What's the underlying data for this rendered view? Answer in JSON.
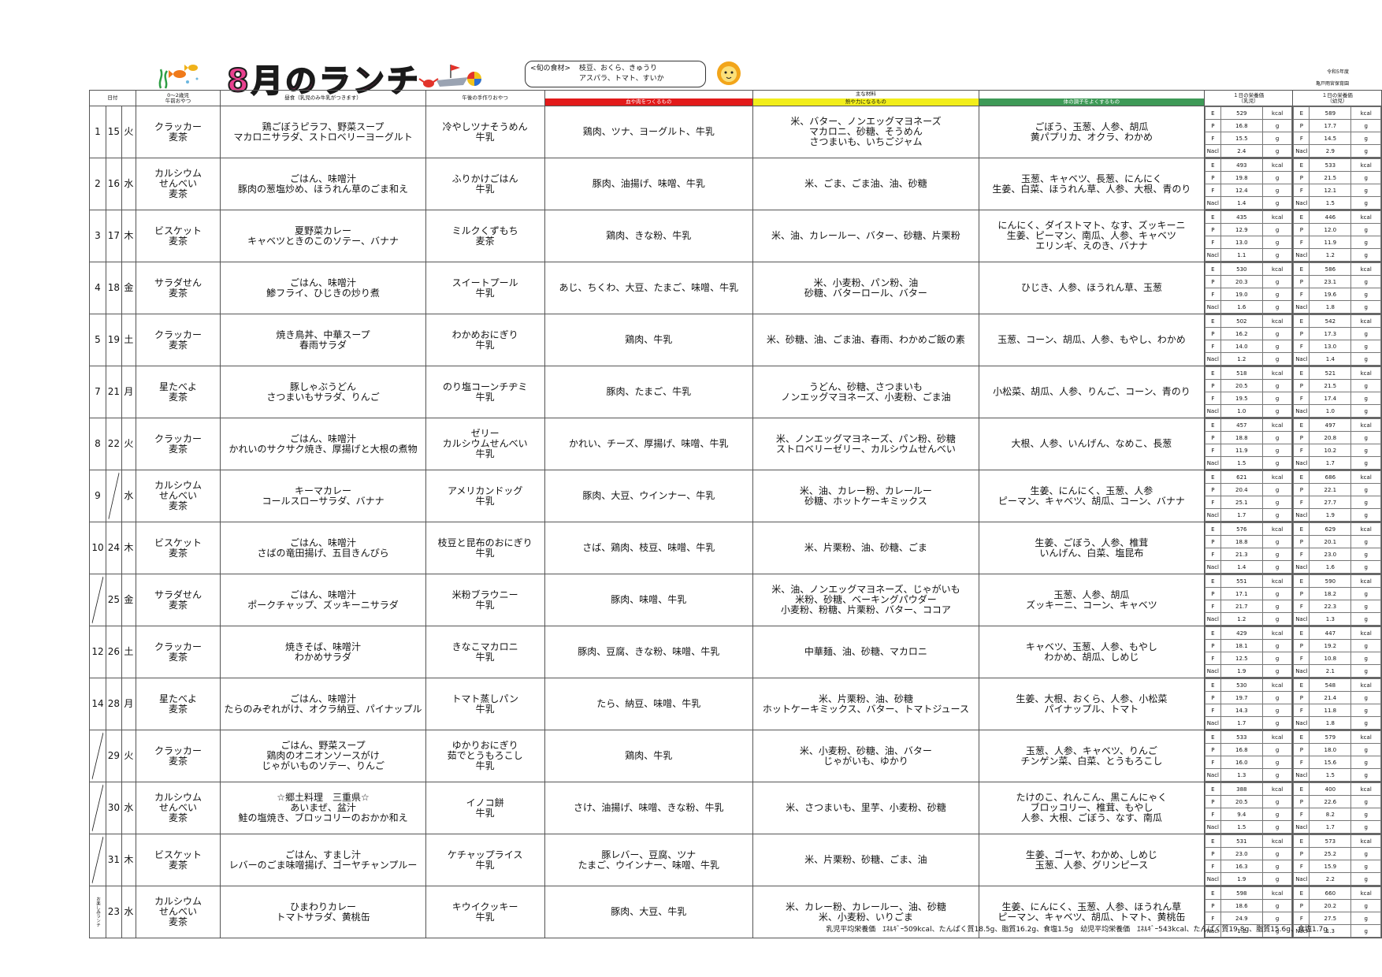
{
  "header": {
    "title": "8月のランチ",
    "shun": {
      "label": "<旬の食材>",
      "line1": "枝豆、おくら、きゅうり",
      "line2": "アスパラ、トマト、すいか"
    },
    "year_note": "令和5年度",
    "org_note": "亀戸雨宮保育園"
  },
  "columns": {
    "date": "日付",
    "morning": "0〜2歳児\n午前おやつ",
    "lunch": "昼食（乳児のみ牛乳がつきます）",
    "snack": "午後の手作りおやつ",
    "ingredients_group": "主な材料",
    "red": "血や肉をつくるもの",
    "yellow": "熱や力になるもの",
    "green": "体の調子をよくするもの",
    "infant": "１日の栄養価\n（乳児）",
    "toddler": "１日の栄養価\n（幼児）"
  },
  "units": {
    "E": "kcal",
    "P": "g",
    "F": "g",
    "Nacl": "g"
  },
  "nutrient_keys": [
    "E",
    "P",
    "F",
    "Nacl"
  ],
  "rows": [
    {
      "week": "1",
      "day": "15",
      "dow": "火",
      "morning": "クラッカー\n麦茶",
      "lunch": "鶏ごぼうピラフ、野菜スープ\nマカロニサラダ、ストロベリーヨーグルト",
      "snack": "冷やしツナそうめん\n牛乳",
      "red": "鶏肉、ツナ、ヨーグルト、牛乳",
      "yellow": "米、バター、ノンエッグマヨネーズ\nマカロニ、砂糖、そうめん\nさつまいも、いちごジャム",
      "green": "ごぼう、玉葱、人参、胡瓜\n黄パプリカ、オクラ、わかめ",
      "infant": [
        "529",
        "16.8",
        "15.5",
        "2.4"
      ],
      "toddler": [
        "589",
        "17.7",
        "14.5",
        "2.9"
      ]
    },
    {
      "week": "2",
      "day": "16",
      "dow": "水",
      "morning": "カルシウム\nせんべい\n麦茶",
      "lunch": "ごはん、味噌汁\n豚肉の葱塩炒め、ほうれん草のごま和え",
      "snack": "ふりかけごはん\n牛乳",
      "red": "豚肉、油揚げ、味噌、牛乳",
      "yellow": "米、ごま、ごま油、油、砂糖",
      "green": "玉葱、キャベツ、長葱、にんにく\n生姜、白菜、ほうれん草、人参、大根、青のり",
      "infant": [
        "493",
        "19.8",
        "12.4",
        "1.4"
      ],
      "toddler": [
        "533",
        "21.5",
        "12.1",
        "1.5"
      ]
    },
    {
      "week": "3",
      "day": "17",
      "dow": "木",
      "morning": "ビスケット\n麦茶",
      "lunch": "夏野菜カレー\nキャベツときのこのソテー、バナナ",
      "snack": "ミルクくずもち\n麦茶",
      "red": "鶏肉、きな粉、牛乳",
      "yellow": "米、油、カレールー、バター、砂糖、片栗粉",
      "green": "にんにく、ダイストマト、なす、ズッキーニ\n生姜、ピーマン、南瓜、人参、キャベツ\nエリンギ、えのき、バナナ",
      "infant": [
        "435",
        "12.9",
        "13.0",
        "1.1"
      ],
      "toddler": [
        "446",
        "12.0",
        "11.9",
        "1.2"
      ]
    },
    {
      "week": "4",
      "day": "18",
      "dow": "金",
      "morning": "サラダせん\n麦茶",
      "lunch": "ごはん、味噌汁\n鯵フライ、ひじきの炒り煮",
      "snack": "スイートプール\n牛乳",
      "red": "あじ、ちくわ、大豆、たまご、味噌、牛乳",
      "yellow": "米、小麦粉、パン粉、油\n砂糖、バターロール、バター",
      "green": "ひじき、人参、ほうれん草、玉葱",
      "infant": [
        "530",
        "20.3",
        "19.0",
        "1.6"
      ],
      "toddler": [
        "586",
        "23.1",
        "19.6",
        "1.8"
      ]
    },
    {
      "week": "5",
      "day": "19",
      "dow": "土",
      "morning": "クラッカー\n麦茶",
      "lunch": "焼き鳥丼、中華スープ\n春雨サラダ",
      "snack": "わかめおにぎり\n牛乳",
      "red": "鶏肉、牛乳",
      "yellow": "米、砂糖、油、ごま油、春雨、わかめご飯の素",
      "green": "玉葱、コーン、胡瓜、人参、もやし、わかめ",
      "infant": [
        "502",
        "16.2",
        "14.0",
        "1.2"
      ],
      "toddler": [
        "542",
        "17.3",
        "13.0",
        "1.4"
      ]
    },
    {
      "week": "7",
      "day": "21",
      "dow": "月",
      "morning": "星たべよ\n麦茶",
      "lunch": "豚しゃぶうどん\nさつまいもサラダ、りんご",
      "snack": "のり塩コーンチヂミ\n牛乳",
      "red": "豚肉、たまご、牛乳",
      "yellow": "うどん、砂糖、さつまいも\nノンエッグマヨネーズ、小麦粉、ごま油",
      "green": "小松菜、胡瓜、人参、りんご、コーン、青のり",
      "infant": [
        "518",
        "20.5",
        "19.5",
        "1.0"
      ],
      "toddler": [
        "521",
        "21.5",
        "17.4",
        "1.0"
      ]
    },
    {
      "week": "8",
      "day": "22",
      "dow": "火",
      "morning": "クラッカー\n麦茶",
      "lunch": "ごはん、味噌汁\nかれいのサクサク焼き、厚揚げと大根の煮物",
      "snack": "ゼリー\nカルシウムせんべい\n牛乳",
      "red": "かれい、チーズ、厚揚げ、味噌、牛乳",
      "yellow": "米、ノンエッグマヨネーズ、パン粉、砂糖\nストロベリーゼリー、カルシウムせんべい",
      "green": "大根、人参、いんげん、なめこ、長葱",
      "infant": [
        "457",
        "18.8",
        "11.9",
        "1.5"
      ],
      "toddler": [
        "497",
        "20.8",
        "10.2",
        "1.7"
      ]
    },
    {
      "week": "9",
      "day": "",
      "dow": "水",
      "slash": "day",
      "morning": "カルシウム\nせんべい\n麦茶",
      "lunch": "キーマカレー\nコールスローサラダ、バナナ",
      "snack": "アメリカンドッグ\n牛乳",
      "red": "豚肉、大豆、ウインナー、牛乳",
      "yellow": "米、油、カレー粉、カレールー\n砂糖、ホットケーキミックス",
      "green": "生姜、にんにく、玉葱、人参\nピーマン、キャベツ、胡瓜、コーン、バナナ",
      "infant": [
        "621",
        "20.4",
        "25.1",
        "1.7"
      ],
      "toddler": [
        "686",
        "22.1",
        "27.7",
        "1.9"
      ]
    },
    {
      "week": "10",
      "day": "24",
      "dow": "木",
      "morning": "ビスケット\n麦茶",
      "lunch": "ごはん、味噌汁\nさばの竜田揚げ、五目きんぴら",
      "snack": "枝豆と昆布のおにぎり\n牛乳",
      "red": "さば、鶏肉、枝豆、味噌、牛乳",
      "yellow": "米、片栗粉、油、砂糖、ごま",
      "green": "生姜、ごぼう、人参、椎茸\nいんげん、白菜、塩昆布",
      "infant": [
        "576",
        "18.8",
        "21.3",
        "1.4"
      ],
      "toddler": [
        "629",
        "20.1",
        "23.0",
        "1.6"
      ]
    },
    {
      "week": "",
      "day": "25",
      "dow": "金",
      "slash": "week",
      "morning": "サラダせん\n麦茶",
      "lunch": "ごはん、味噌汁\nポークチャップ、ズッキーニサラダ",
      "snack": "米粉ブラウニー\n牛乳",
      "red": "豚肉、味噌、牛乳",
      "yellow": "米、油、ノンエッグマヨネーズ、じゃがいも\n米粉、砂糖、ベーキングパウダー\n小麦粉、粉糖、片栗粉、バター、ココア",
      "green": "玉葱、人参、胡瓜\nズッキーニ、コーン、キャベツ",
      "infant": [
        "551",
        "17.1",
        "21.7",
        "1.2"
      ],
      "toddler": [
        "590",
        "18.2",
        "22.3",
        "1.3"
      ]
    },
    {
      "week": "12",
      "day": "26",
      "dow": "土",
      "morning": "クラッカー\n麦茶",
      "lunch": "焼きそば、味噌汁\nわかめサラダ",
      "snack": "きなこマカロニ\n牛乳",
      "red": "豚肉、豆腐、きな粉、味噌、牛乳",
      "yellow": "中華麺、油、砂糖、マカロニ",
      "green": "キャベツ、玉葱、人参、もやし\nわかめ、胡瓜、しめじ",
      "infant": [
        "429",
        "18.1",
        "12.5",
        "1.9"
      ],
      "toddler": [
        "447",
        "19.2",
        "10.8",
        "2.1"
      ]
    },
    {
      "week": "14",
      "day": "28",
      "dow": "月",
      "morning": "星たべよ\n麦茶",
      "lunch": "ごはん、味噌汁\nたらのみぞれがけ、オクラ納豆、パイナップル",
      "snack": "トマト蒸しパン\n牛乳",
      "red": "たら、納豆、味噌、牛乳",
      "yellow": "米、片栗粉、油、砂糖\nホットケーキミックス、バター、トマトジュース",
      "green": "生姜、大根、おくら、人参、小松菜\nパイナップル、トマト",
      "infant": [
        "530",
        "19.7",
        "14.3",
        "1.7"
      ],
      "toddler": [
        "548",
        "21.4",
        "11.8",
        "1.8"
      ]
    },
    {
      "week": "",
      "day": "29",
      "dow": "火",
      "slash": "week",
      "morning": "クラッカー\n麦茶",
      "lunch": "ごはん、野菜スープ\n鶏肉のオニオンソースがけ\nじゃがいものソテー、りんご",
      "snack": "ゆかりおにぎり\n茹でとうもろこし\n牛乳",
      "red": "鶏肉、牛乳",
      "yellow": "米、小麦粉、砂糖、油、バター\nじゃがいも、ゆかり",
      "green": "玉葱、人参、キャベツ、りんご\nチンゲン菜、白菜、とうもろこし",
      "infant": [
        "533",
        "16.8",
        "16.0",
        "1.3"
      ],
      "toddler": [
        "579",
        "18.0",
        "15.6",
        "1.5"
      ]
    },
    {
      "week": "",
      "day": "30",
      "dow": "水",
      "slash": "week",
      "morning": "カルシウム\nせんべい\n麦茶",
      "lunch": "☆郷土料理　三重県☆\nあいまぜ、盆汁\n鮭の塩焼き、ブロッコリーのおかか和え",
      "snack": "イノコ餅\n牛乳",
      "red": "さけ、油揚げ、味噌、きな粉、牛乳",
      "yellow": "米、さつまいも、里芋、小麦粉、砂糖",
      "green": "たけのこ、れんこん、黒こんにゃく\nブロッコリー、椎茸、もやし\n人参、大根、ごぼう、なす、南瓜",
      "infant": [
        "388",
        "20.5",
        "9.4",
        "1.5"
      ],
      "toddler": [
        "400",
        "22.6",
        "8.2",
        "1.7"
      ]
    },
    {
      "week": "",
      "day": "31",
      "dow": "木",
      "slash": "week",
      "morning": "ビスケット\n麦茶",
      "lunch": "ごはん、すまし汁\nレバーのごま味噌揚げ、ゴーヤチャンプルー",
      "snack": "ケチャップライス\n牛乳",
      "red": "豚レバー、豆腐、ツナ\nたまご、ウインナー、味噌、牛乳",
      "yellow": "米、片栗粉、砂糖、ごま、油",
      "green": "生姜、ゴーヤ、わかめ、しめじ\n玉葱、人参、グリンピース",
      "infant": [
        "531",
        "23.0",
        "16.3",
        "1.9"
      ],
      "toddler": [
        "573",
        "25.2",
        "15.9",
        "2.2"
      ]
    },
    {
      "week": "お楽しみランチ",
      "day": "23",
      "dow": "水",
      "morning": "カルシウム\nせんべい\n麦茶",
      "lunch": "ひまわりカレー\nトマトサラダ、黄桃缶",
      "snack": "キウイクッキー\n牛乳",
      "red": "豚肉、大豆、牛乳",
      "yellow": "米、カレー粉、カレールー、油、砂糖\n米、小麦粉、いりごま",
      "green": "生姜、にんにく、玉葱、人参、ほうれん草\nピーマン、キャベツ、胡瓜、トマト、黄桃缶",
      "infant": [
        "598",
        "18.6",
        "24.9",
        "1.2"
      ],
      "toddler": [
        "660",
        "20.2",
        "27.5",
        "1.3"
      ]
    }
  ],
  "footer": "乳児平均栄養価　ｴﾈﾙｷﾞｰ509kcal、たんぱく質18.5g、脂質16.2g、食塩1.5g　幼児平均栄養価　ｴﾈﾙｷﾞｰ543kcal、たんぱく質19.8g、脂質15.6g、食塩1.7g",
  "colors": {
    "red_header": "#e21a1a",
    "yellow_header": "#f2ee1b",
    "green_header": "#3e9a57",
    "title": "#e8418f"
  },
  "decor": [
    "fish-icon",
    "seaweed-icon",
    "crab-icon",
    "boat-icon",
    "beach-ball-icon",
    "lion-icon"
  ]
}
